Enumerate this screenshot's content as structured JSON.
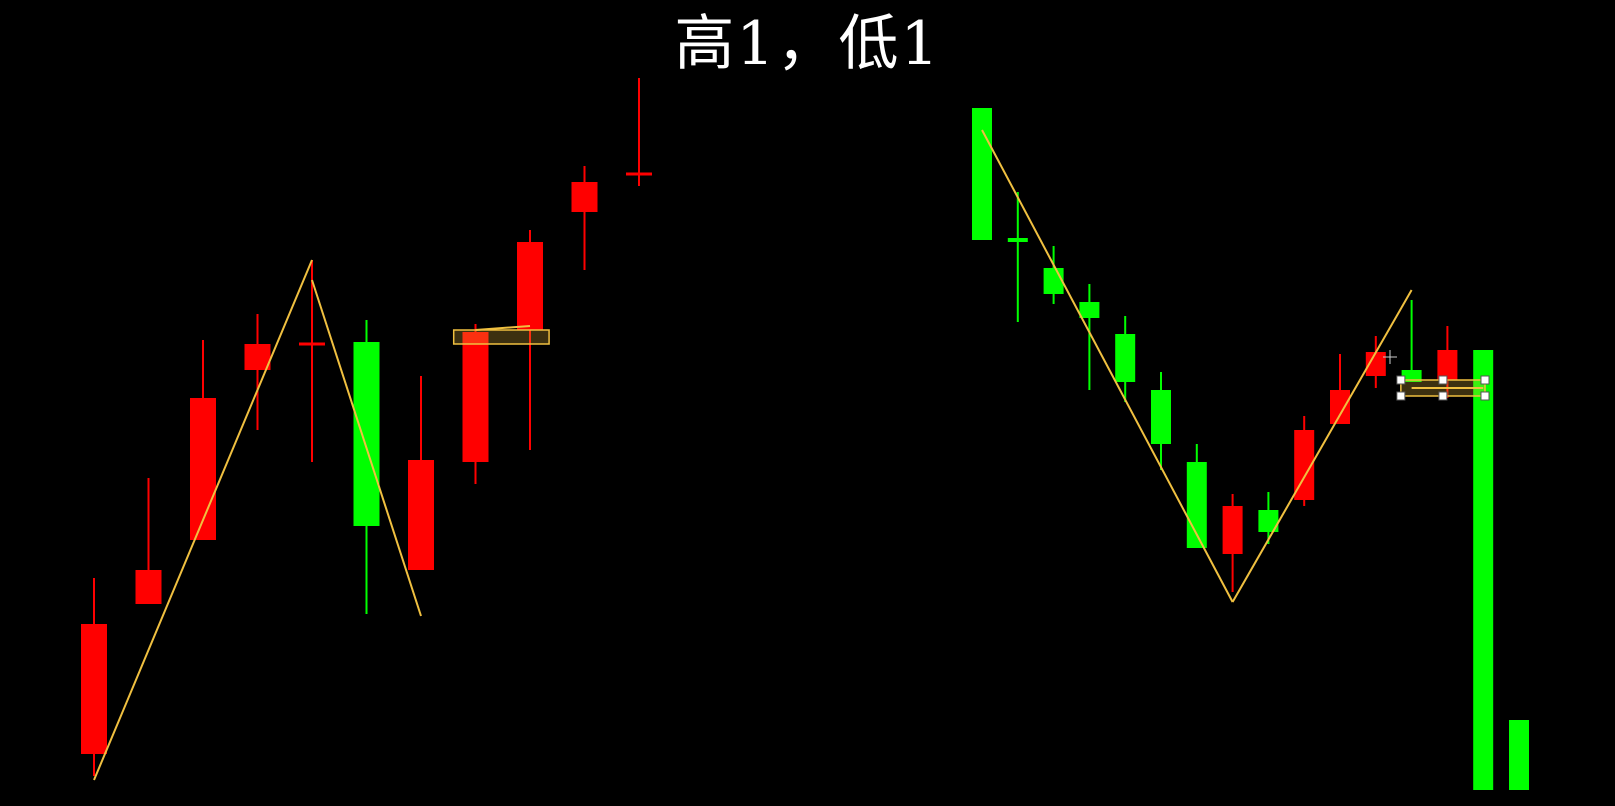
{
  "title": "高1，低1",
  "colors": {
    "background": "#000000",
    "up": "#ff0000",
    "down": "#00ff00",
    "trend_line": "#f0c040",
    "title": "#ffffff"
  },
  "chart_data": [
    {
      "type": "candlestick",
      "panel": "left",
      "title": "",
      "xlabel": "",
      "ylabel": "",
      "candles": [
        {
          "open": 18,
          "close": 83,
          "high": 106,
          "low": 7
        },
        {
          "open": 93,
          "close": 110,
          "high": 156,
          "low": 93
        },
        {
          "open": 125,
          "close": 196,
          "high": 225,
          "low": 125
        },
        {
          "open": 210,
          "close": 223,
          "high": 238,
          "low": 180
        },
        {
          "open": 223,
          "close": 223,
          "high": 265,
          "low": 164
        },
        {
          "open": 224,
          "close": 132,
          "high": 235,
          "low": 88
        },
        {
          "open": 110,
          "close": 165,
          "high": 207,
          "low": 110
        },
        {
          "open": 164,
          "close": 229,
          "high": 233,
          "low": 153
        },
        {
          "open": 230,
          "close": 274,
          "high": 280,
          "low": 170
        },
        {
          "open": 289,
          "close": 304,
          "high": 312,
          "low": 260
        },
        {
          "open": 308,
          "close": 308,
          "high": 356,
          "low": 302
        }
      ]
    },
    {
      "type": "candlestick",
      "panel": "right",
      "title": "",
      "xlabel": "",
      "ylabel": "",
      "candles": [
        {
          "open": 341,
          "close": 275,
          "high": 341,
          "low": 275
        },
        {
          "open": 276,
          "close": 274,
          "high": 299,
          "low": 234
        },
        {
          "open": 261,
          "close": 248,
          "high": 272,
          "low": 243
        },
        {
          "open": 244,
          "close": 236,
          "high": 253,
          "low": 200
        },
        {
          "open": 228,
          "close": 204,
          "high": 237,
          "low": 194
        },
        {
          "open": 200,
          "close": 173,
          "high": 209,
          "low": 160
        },
        {
          "open": 164,
          "close": 121,
          "high": 173,
          "low": 121
        },
        {
          "open": 118,
          "close": 142,
          "high": 148,
          "low": 99
        },
        {
          "open": 140,
          "close": 129,
          "high": 149,
          "low": 123
        },
        {
          "open": 145,
          "close": 180,
          "high": 187,
          "low": 142
        },
        {
          "open": 183,
          "close": 200,
          "high": 218,
          "low": 183
        },
        {
          "open": 207,
          "close": 219,
          "high": 227,
          "low": 201
        },
        {
          "open": 210,
          "close": 204,
          "high": 245,
          "low": 204
        },
        {
          "open": 205,
          "close": 220,
          "high": 232,
          "low": 196
        },
        {
          "open": 220,
          "close": 0,
          "high": 220,
          "low": 0
        },
        {
          "open": 35,
          "close": 0,
          "high": 35,
          "low": 0
        }
      ]
    }
  ],
  "annotations": {
    "trend_lines": [
      {
        "panel": "left",
        "from": {
          "candle": 0,
          "price": 5
        },
        "to": {
          "candle": 4,
          "price": 265
        }
      },
      {
        "panel": "left",
        "from": {
          "candle": 4,
          "price": 255
        },
        "to": {
          "candle": 6,
          "price": 87
        }
      },
      {
        "panel": "left",
        "from": {
          "candle": 7,
          "price": 230
        },
        "to": {
          "candle": 8,
          "price": 232
        }
      },
      {
        "panel": "right",
        "from": {
          "candle": 0,
          "price": 330
        },
        "to": {
          "candle": 7,
          "price": 94
        }
      },
      {
        "panel": "right",
        "from": {
          "candle": 7,
          "price": 94
        },
        "to": {
          "candle": 12,
          "price": 250
        }
      },
      {
        "panel": "right",
        "from": {
          "candle": 12,
          "price": 201
        },
        "to": {
          "candle": 14,
          "price": 201
        }
      }
    ],
    "boxes": [
      {
        "panel": "left",
        "from_candle": 6.6,
        "to_candle": 8.35,
        "price_low": 223,
        "price_high": 230
      },
      {
        "panel": "right",
        "from_candle": 11.7,
        "to_candle": 14.05,
        "price_low": 197,
        "price_high": 205
      }
    ]
  }
}
